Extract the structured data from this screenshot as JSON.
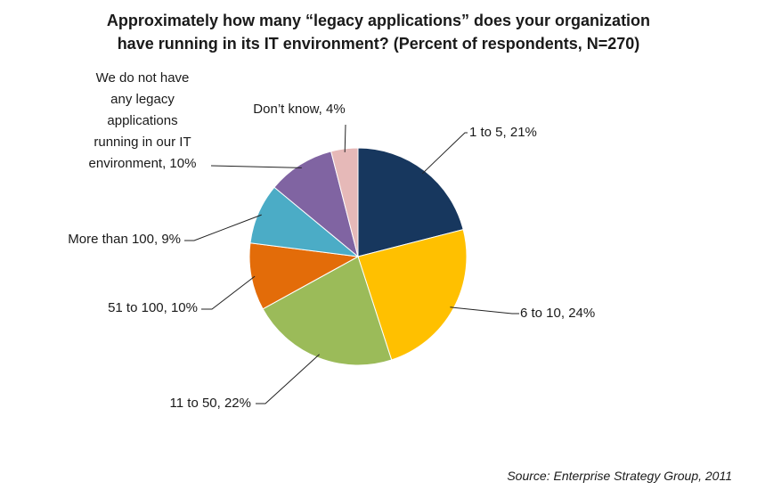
{
  "chart_data": {
    "type": "pie",
    "title_line1": "Approximately how many “legacy applications” does your organization",
    "title_line2": "have running in its IT environment? (Percent of respondents, N=270)",
    "slices": [
      {
        "label": "1 to 5, 21%",
        "value": 21,
        "color": "#17375e"
      },
      {
        "label": "6  to 10, 24%",
        "value": 24,
        "color": "#ffc000"
      },
      {
        "label": "11 to 50, 22%",
        "value": 22,
        "color": "#9bbb59"
      },
      {
        "label": "51 to 100, 10%",
        "value": 10,
        "color": "#e36c09"
      },
      {
        "label": "More than 100, 9%",
        "value": 9,
        "color": "#4bacc6"
      },
      {
        "label_lines": [
          "We do not have",
          "any legacy",
          "applications",
          "running in our IT",
          "environment, 10%"
        ],
        "value": 10,
        "color": "#8064a2"
      },
      {
        "label": "Don’t know, 4%",
        "value": 4,
        "color": "#e6b9b8"
      }
    ],
    "source": "Source: Enterprise  Strategy  Group,  2011"
  }
}
